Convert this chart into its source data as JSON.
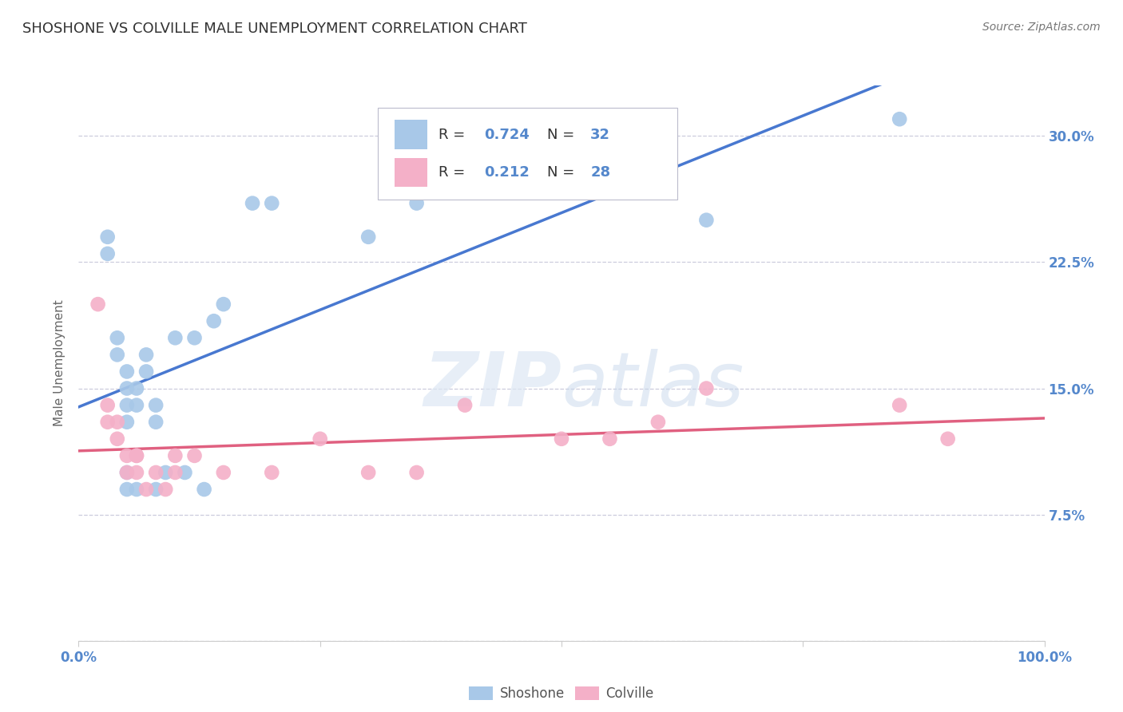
{
  "title": "SHOSHONE VS COLVILLE MALE UNEMPLOYMENT CORRELATION CHART",
  "source": "Source: ZipAtlas.com",
  "ylabel": "Male Unemployment",
  "xlim": [
    0,
    100
  ],
  "ylim": [
    0,
    33
  ],
  "yticks": [
    0,
    7.5,
    15.0,
    22.5,
    30.0
  ],
  "ytick_labels": [
    "",
    "7.5%",
    "15.0%",
    "22.5%",
    "30.0%"
  ],
  "xticks": [
    0,
    25,
    50,
    75,
    100
  ],
  "xtick_labels": [
    "0.0%",
    "",
    "",
    "",
    "100.0%"
  ],
  "shoshone_R": 0.724,
  "shoshone_N": 32,
  "colville_R": 0.212,
  "colville_N": 28,
  "shoshone_color": "#a8c8e8",
  "colville_color": "#f4b0c8",
  "shoshone_line_color": "#4878d0",
  "colville_line_color": "#e06080",
  "background_color": "#ffffff",
  "grid_color": "#ccccdd",
  "shoshone_x": [
    3,
    3,
    4,
    4,
    5,
    5,
    5,
    5,
    5,
    5,
    6,
    6,
    6,
    7,
    7,
    8,
    8,
    8,
    9,
    10,
    11,
    12,
    13,
    14,
    15,
    18,
    20,
    30,
    35,
    50,
    65,
    85
  ],
  "shoshone_y": [
    24,
    23,
    18,
    17,
    16,
    15,
    14,
    13,
    10,
    9,
    15,
    14,
    9,
    17,
    16,
    14,
    13,
    9,
    10,
    18,
    10,
    18,
    9,
    19,
    20,
    26,
    26,
    24,
    26,
    29,
    25,
    31
  ],
  "colville_x": [
    2,
    4,
    4,
    5,
    5,
    6,
    6,
    7,
    8,
    9,
    10,
    12,
    15,
    20,
    25,
    30,
    35,
    40,
    50,
    55,
    60,
    65,
    85,
    90,
    3,
    3,
    6,
    10
  ],
  "colville_y": [
    20,
    13,
    12,
    11,
    10,
    11,
    10,
    9,
    10,
    9,
    10,
    11,
    10,
    10,
    12,
    10,
    10,
    14,
    12,
    12,
    13,
    15,
    14,
    12,
    14,
    13,
    11,
    11
  ],
  "watermark_zip": "ZIP",
  "watermark_atlas": "atlas",
  "tick_label_color": "#5588cc",
  "right_ytick_color": "#5588cc",
  "title_fontsize": 13,
  "axis_label_fontsize": 11,
  "legend_text_color": "#333333",
  "legend_value_color": "#5588cc"
}
